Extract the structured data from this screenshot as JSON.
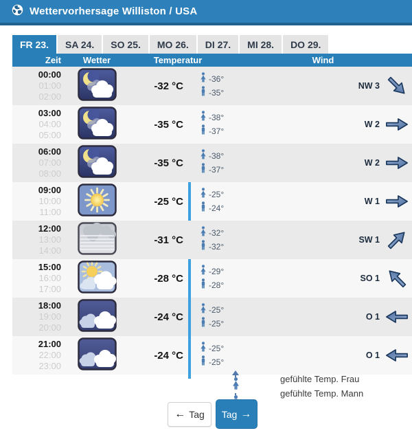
{
  "header": {
    "title": "Wettervorhersage Williston / USA",
    "icon": "globe-icon"
  },
  "tabs": [
    {
      "label": "FR 23.",
      "active": true
    },
    {
      "label": "SA 24.",
      "active": false
    },
    {
      "label": "SO 25.",
      "active": false
    },
    {
      "label": "MO 26.",
      "active": false
    },
    {
      "label": "DI 27.",
      "active": false
    },
    {
      "label": "MI 28.",
      "active": false
    },
    {
      "label": "DO 29.",
      "active": false
    }
  ],
  "table": {
    "headers": {
      "time": "Zeit",
      "weather": "Wetter",
      "temperature": "Temperatur",
      "wind": "Wind"
    },
    "rows": [
      {
        "times": [
          "00:00",
          "01:00",
          "02:00"
        ],
        "icon": "moon-clouds",
        "temperature": "-32 °C",
        "felt_temp_frau": "-36°",
        "felt_temp_mann": "-35°",
        "wind": "NW 3",
        "wind_arrow_deg": 45,
        "blue_bar": false
      },
      {
        "times": [
          "03:00",
          "04:00",
          "05:00"
        ],
        "icon": "moon-clouds",
        "temperature": "-35 °C",
        "felt_temp_frau": "-38°",
        "felt_temp_mann": "-37°",
        "wind": "W 2",
        "wind_arrow_deg": 0,
        "blue_bar": false
      },
      {
        "times": [
          "06:00",
          "07:00",
          "08:00"
        ],
        "icon": "moon-clouds",
        "temperature": "-35 °C",
        "felt_temp_frau": "-38°",
        "felt_temp_mann": "-37°",
        "wind": "W 2",
        "wind_arrow_deg": 0,
        "blue_bar": false
      },
      {
        "times": [
          "09:00",
          "10:00",
          "11:00"
        ],
        "icon": "sun",
        "temperature": "-25 °C",
        "felt_temp_frau": "-25°",
        "felt_temp_mann": "-24°",
        "wind": "W 1",
        "wind_arrow_deg": 0,
        "blue_bar": true
      },
      {
        "times": [
          "12:00",
          "13:00",
          "14:00"
        ],
        "icon": "fog",
        "temperature": "-31 °C",
        "felt_temp_frau": "-32°",
        "felt_temp_mann": "-32°",
        "wind": "SW 1",
        "wind_arrow_deg": -45,
        "blue_bar": false
      },
      {
        "times": [
          "15:00",
          "16:00",
          "17:00"
        ],
        "icon": "sun-clouds",
        "temperature": "-28 °C",
        "felt_temp_frau": "-29°",
        "felt_temp_mann": "-28°",
        "wind": "SO 1",
        "wind_arrow_deg": -135,
        "blue_bar": true
      },
      {
        "times": [
          "18:00",
          "19:00",
          "20:00"
        ],
        "icon": "night-clouds",
        "temperature": "-24 °C",
        "felt_temp_frau": "-25°",
        "felt_temp_mann": "-25°",
        "wind": "O 1",
        "wind_arrow_deg": 180,
        "blue_bar": true
      },
      {
        "times": [
          "21:00",
          "22:00",
          "23:00"
        ],
        "icon": "night-clouds",
        "temperature": "-24 °C",
        "felt_temp_frau": "-25°",
        "felt_temp_mann": "-25°",
        "wind": "O 1",
        "wind_arrow_deg": 180,
        "blue_bar": true
      }
    ]
  },
  "legend": {
    "frau": "gefühlte Temp. Frau",
    "mann": "gefühlte Temp. Mann"
  },
  "nav": {
    "prev_arrow": "←",
    "prev_label": "Tag",
    "next_label": "Tag",
    "next_arrow": "→"
  },
  "colors": {
    "accent_blue": "#2980b9",
    "bar_blue": "#3da0e0",
    "arrow_blue": "#4a6b9d",
    "person_blue": "#4d7db3"
  }
}
